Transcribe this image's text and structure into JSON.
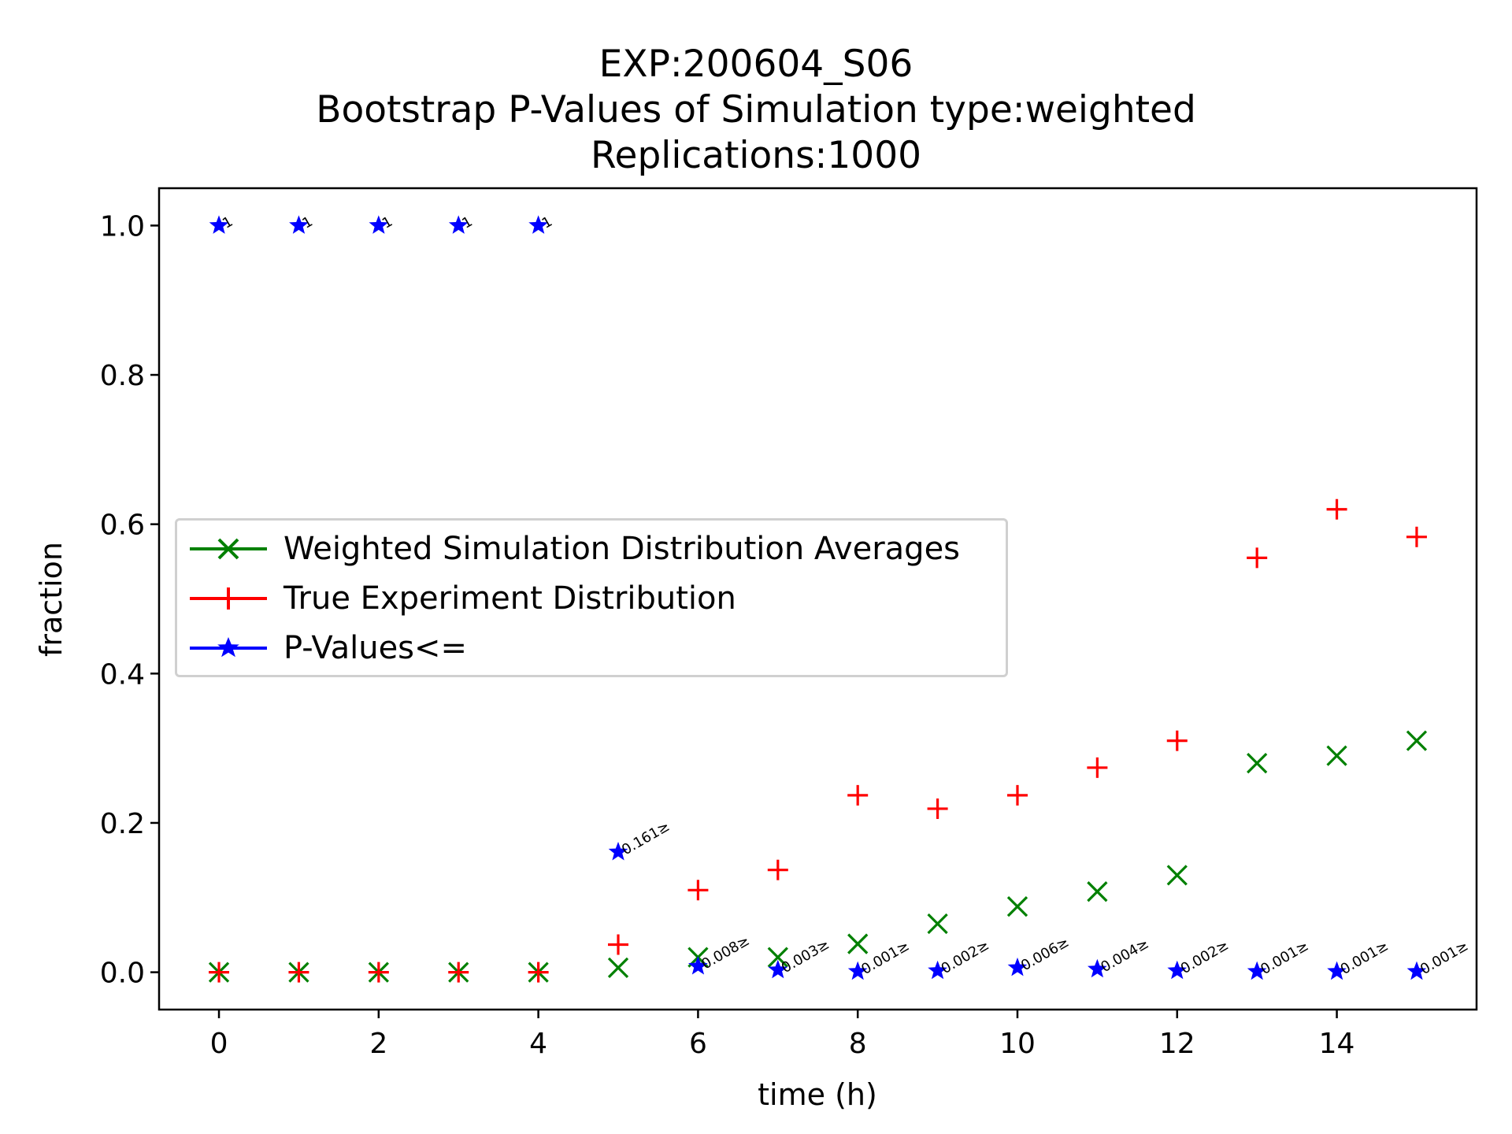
{
  "chart_data": {
    "type": "scatter",
    "title_lines": [
      "EXP:200604_S06",
      "Bootstrap P-Values of Simulation type:weighted",
      "Replications:1000"
    ],
    "xlabel": "time (h)",
    "ylabel": "fraction",
    "xlim": [
      -0.75,
      15.75
    ],
    "ylim": [
      -0.05,
      1.05
    ],
    "xticks": [
      0,
      2,
      4,
      6,
      8,
      10,
      12,
      14
    ],
    "yticks": [
      0.0,
      0.2,
      0.4,
      0.6,
      0.8,
      1.0
    ],
    "grid": false,
    "legend_position": "center-left",
    "x": [
      0,
      1,
      2,
      3,
      4,
      5,
      6,
      7,
      8,
      9,
      10,
      11,
      12,
      13,
      14,
      15
    ],
    "series": [
      {
        "name": "Weighted Simulation Distribution Averages",
        "marker": "x",
        "color": "#008000",
        "values": [
          0.0,
          0.0,
          0.0,
          0.0,
          0.0,
          0.006,
          0.02,
          0.02,
          0.038,
          0.065,
          0.088,
          0.108,
          0.13,
          0.28,
          0.29,
          0.31
        ]
      },
      {
        "name": "True Experiment Distribution",
        "marker": "+",
        "color": "#ff0000",
        "values": [
          0.0,
          0.0,
          0.0,
          0.0,
          0.0,
          0.037,
          0.11,
          0.137,
          0.237,
          0.219,
          0.237,
          0.274,
          0.31,
          0.555,
          0.62,
          0.583
        ]
      },
      {
        "name": "P-Values<=",
        "marker": "*",
        "color": "#0000ff",
        "values": [
          1.0,
          1.0,
          1.0,
          1.0,
          1.0,
          0.161,
          0.008,
          0.003,
          0.001,
          0.002,
          0.006,
          0.004,
          0.002,
          0.001,
          0.001,
          0.001
        ],
        "labels": [
          "1",
          "1",
          "1",
          "1",
          "1",
          "0.161≥",
          "0.008≥",
          "0.003≥",
          "0.001≥",
          "0.002≥",
          "0.006≥",
          "0.004≥",
          "0.002≥",
          "0.001≥",
          "0.001≥",
          "0.001≥"
        ]
      }
    ]
  }
}
